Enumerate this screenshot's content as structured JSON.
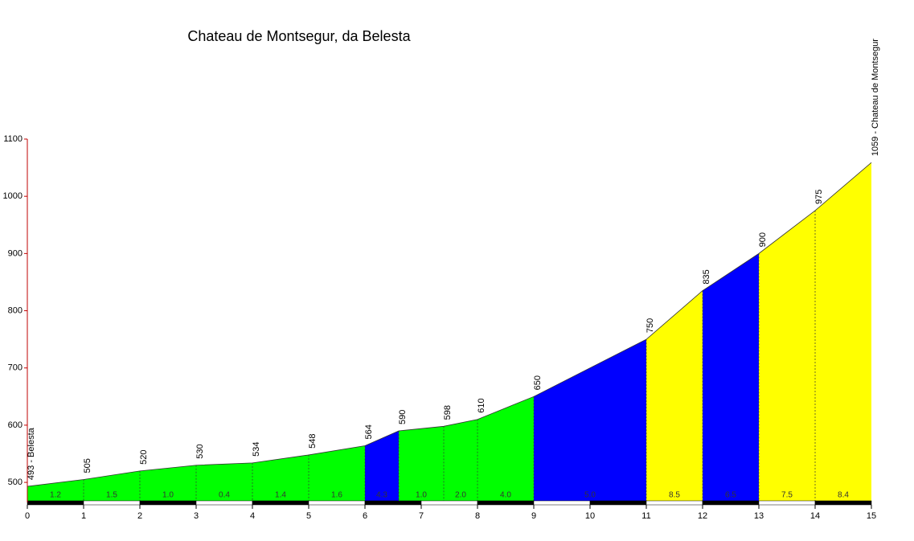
{
  "chart_data": {
    "type": "area",
    "title": "Chateau de Montsegur, da Belesta",
    "x": [
      0,
      1,
      2,
      3,
      4,
      5,
      6,
      6.6,
      7.4,
      8,
      9,
      11,
      12,
      13,
      14,
      15
    ],
    "values": [
      493,
      505,
      520,
      530,
      534,
      548,
      564,
      590,
      598,
      610,
      650,
      750,
      835,
      900,
      975,
      1059
    ],
    "value_labels": [
      "493 - Belesta",
      "505",
      "520",
      "530",
      "534",
      "548",
      "564",
      "590",
      "598",
      "610",
      "650",
      "750",
      "835",
      "900",
      "975",
      "1059 - Chateau de Montsegur"
    ],
    "gradients": [
      1.2,
      1.5,
      1.0,
      0.4,
      1.4,
      1.6,
      4.3,
      1.0,
      2.0,
      4.0,
      5.0,
      8.5,
      6.5,
      7.5,
      8.4
    ],
    "gradient_labels": [
      "1.2",
      "1.5",
      "1.0",
      "0.4",
      "1.4",
      "1.6",
      "4.3",
      "1.0",
      "2.0",
      "4.0",
      "5.0",
      "8.5",
      "6.5",
      "7.5",
      "8.4"
    ],
    "colors": [
      "#00ff00",
      "#00ff00",
      "#00ff00",
      "#00ff00",
      "#00ff00",
      "#00ff00",
      "#0000ff",
      "#00ff00",
      "#00ff00",
      "#00ff00",
      "#0000ff",
      "#ffff00",
      "#0000ff",
      "#ffff00",
      "#ffff00"
    ],
    "xlim": [
      0,
      15
    ],
    "xticks": [
      0,
      1,
      2,
      3,
      4,
      5,
      6,
      7,
      8,
      9,
      10,
      11,
      12,
      13,
      14,
      15
    ],
    "ylim": [
      465,
      1100
    ],
    "yticks": [
      500,
      600,
      700,
      800,
      900,
      1000,
      1100
    ]
  }
}
